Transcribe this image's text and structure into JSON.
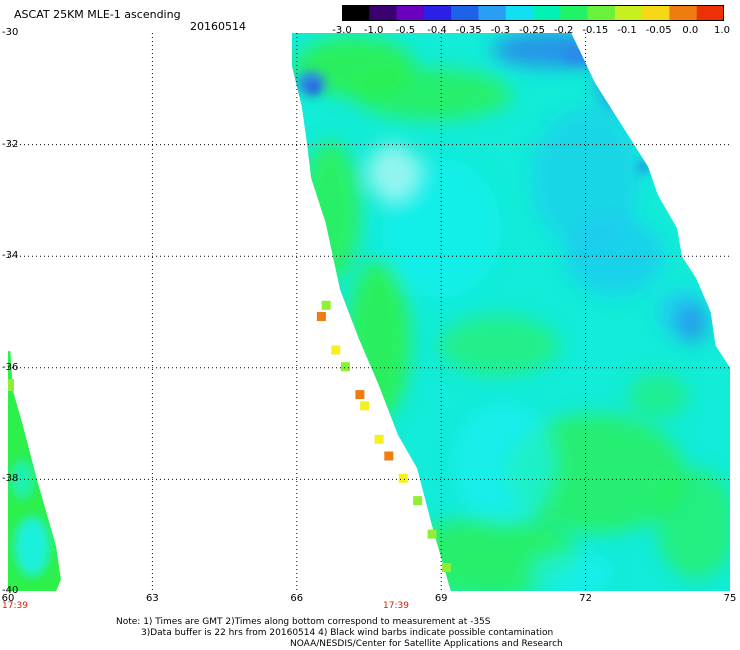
{
  "header": {
    "title": "ASCAT 25KM MLE-1 ascending",
    "date": "20160514"
  },
  "colorbar": {
    "ticks": [
      "-3.0",
      "-1.0",
      "-0.5",
      "-0.4",
      "-0.35",
      "-0.3",
      "-0.25",
      "-0.2",
      "-0.15",
      "-0.1",
      "-0.05",
      "0.0",
      "1.0"
    ],
    "colors": [
      "#000000",
      "#3a0070",
      "#6a00c0",
      "#2a20e6",
      "#1f62ea",
      "#2a9ef0",
      "#10e0f0",
      "#00f2b4",
      "#22f266",
      "#6af23a",
      "#c6f020",
      "#f6d816",
      "#f07c10",
      "#ec3008"
    ]
  },
  "map": {
    "y_ticks": [
      "-30",
      "-32",
      "-34",
      "-36",
      "-38",
      "-40"
    ],
    "x_ticks": [
      "60",
      "63",
      "66",
      "69",
      "72",
      "75"
    ],
    "x_range": [
      60,
      75
    ],
    "y_range": [
      -40,
      -30
    ],
    "grid": "dotted",
    "pass_times": [
      {
        "label": "17:39",
        "lon": 60
      },
      {
        "label": "17:39",
        "lon": 68
      }
    ],
    "colors": {
      "swath_base": "#12ecd8",
      "cyan": "#18f0f4",
      "green": "#2ef04a",
      "light_blue": "#1ec8f2",
      "blue": "#2a86ea",
      "deep_blue": "#2a40e6",
      "yellow": "#f6f01e",
      "orange": "#f07c10",
      "lime": "#8ef034"
    }
  },
  "notes": {
    "line1": "Note: 1) Times are GMT 2)Times along bottom correspond to measurement at -35S",
    "line2": "3)Data buffer is 22 hrs from 20160514 4) Black wind barbs indicate possible contamination",
    "line3": "NOAA/NESDIS/Center for Satellite Applications and Research"
  }
}
